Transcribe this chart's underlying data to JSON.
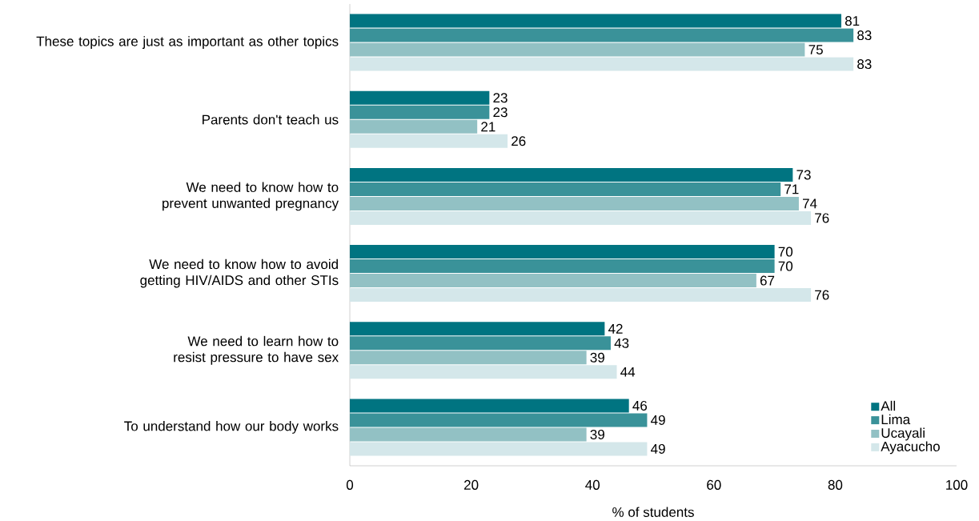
{
  "chart_data": {
    "type": "bar",
    "orientation": "horizontal",
    "xlabel": "% of students",
    "categories": [
      "These topics are just as important as other topics",
      "Parents don't teach us",
      "We need to know how to prevent unwanted pregnancy",
      "We need to know how to avoid getting HIV/AIDS and other STIs",
      "We need to learn how to resist pressure to have sex",
      "To understand how our body works"
    ],
    "series": [
      {
        "name": "All",
        "color": "#007481",
        "values": [
          81,
          23,
          73,
          70,
          42,
          46
        ]
      },
      {
        "name": "Lima",
        "color": "#3a9299",
        "values": [
          83,
          23,
          71,
          70,
          43,
          49
        ]
      },
      {
        "name": "Ucayali",
        "color": "#92c1c4",
        "values": [
          75,
          21,
          74,
          67,
          39,
          39
        ]
      },
      {
        "name": "Ayacucho",
        "color": "#d4e7ea",
        "values": [
          83,
          26,
          76,
          76,
          44,
          49
        ]
      }
    ],
    "xlim": [
      0,
      100
    ],
    "xticks": [
      0,
      20,
      40,
      60,
      80,
      100
    ],
    "data_labels": true,
    "legend": "bottom right",
    "grid": false
  }
}
